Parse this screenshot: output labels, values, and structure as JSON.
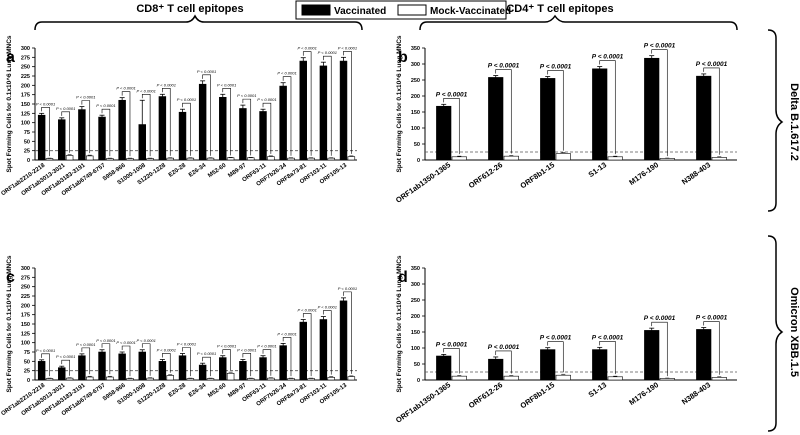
{
  "header": {
    "left_title": "CD8⁺ T cell epitopes",
    "right_title": "CD4⁺ T cell epitopes",
    "legend": [
      {
        "label": "Vaccinated",
        "fill": "#000000"
      },
      {
        "label": "Mock-Vaccinated",
        "fill": "#ffffff"
      }
    ]
  },
  "variants": [
    "Delta B.1.617.2",
    "Omicron XBB.1.5"
  ],
  "colors": {
    "vaccinated": "#000000",
    "mock": "#ffffff",
    "threshold": "#555555"
  },
  "chart_data": [
    {
      "id": "a",
      "type": "bar",
      "panel_label": "a",
      "ylabel": "Spot Forming Cells for 0.1x10^6 Lung MNCs",
      "ylim": [
        0,
        300
      ],
      "yticks": [
        0,
        25,
        50,
        75,
        100,
        125,
        150,
        175,
        200,
        225,
        250,
        275,
        300
      ],
      "threshold": 25,
      "categories": [
        "ORF1ab2210-2218",
        "ORF1ab3013-3021",
        "ORF1ab3183-3191",
        "ORF1ab6749-6757",
        "S958-966",
        "S1000-1008",
        "S1220-1228",
        "E20-28",
        "E26-34",
        "M52-60",
        "M89-97",
        "ORF63-11",
        "ORF7b26-34",
        "ORF8a73-81",
        "ORF103-11",
        "ORF105-13"
      ],
      "series": [
        {
          "name": "Vaccinated",
          "values": [
            120,
            108,
            135,
            115,
            160,
            95,
            170,
            128,
            203,
            168,
            138,
            130,
            198,
            265,
            252,
            265
          ],
          "errors": [
            5,
            5,
            8,
            5,
            7,
            65,
            6,
            8,
            9,
            8,
            9,
            6,
            9,
            9,
            10,
            10
          ]
        },
        {
          "name": "Mock-Vaccinated",
          "values": [
            4,
            12,
            11,
            4,
            4,
            4,
            5,
            5,
            5,
            6,
            6,
            9,
            5,
            5,
            5,
            9
          ],
          "errors": [
            1,
            2,
            2,
            1,
            1,
            1,
            1,
            1,
            1,
            1,
            1,
            2,
            1,
            1,
            1,
            2
          ]
        }
      ],
      "annotation": "P < 0.0001"
    },
    {
      "id": "b",
      "type": "bar",
      "panel_label": "b",
      "ylabel": "Spot Forming Cells for 0.1x10^6 Lung MNCs",
      "ylim": [
        0,
        350
      ],
      "yticks": [
        0,
        50,
        100,
        150,
        200,
        250,
        300,
        350
      ],
      "threshold": 25,
      "categories": [
        "ORF1ab1350-1365",
        "ORF612-26",
        "ORF8b1-15",
        "S1-13",
        "M176-190",
        "N388-403"
      ],
      "series": [
        {
          "name": "Vaccinated",
          "values": [
            168,
            258,
            255,
            285,
            318,
            262
          ],
          "errors": [
            6,
            6,
            6,
            7,
            8,
            7
          ]
        },
        {
          "name": "Mock-Vaccinated",
          "values": [
            10,
            12,
            20,
            10,
            5,
            8
          ],
          "errors": [
            2,
            2,
            3,
            2,
            1,
            2
          ]
        }
      ],
      "annotation": "P < 0.0001"
    },
    {
      "id": "c",
      "type": "bar",
      "panel_label": "c",
      "ylabel": "Spot Forming Cells for 0.1x10^6 Lung MNCs",
      "ylim": [
        0,
        300
      ],
      "yticks": [
        0,
        25,
        50,
        75,
        100,
        125,
        150,
        175,
        200,
        225,
        250,
        275,
        300
      ],
      "threshold": 25,
      "categories": [
        "ORF1ab2210-2218",
        "ORF1ab3013-3021",
        "ORF1ab3183-3191",
        "ORF1ab6749-6757",
        "S958-966",
        "S1000-1008",
        "S1220-1228",
        "E20-28",
        "E26-34",
        "M52-60",
        "M89-97",
        "ORF63-11",
        "ORF7b26-34",
        "ORF8a73-81",
        "ORF103-11",
        "ORF105-13"
      ],
      "series": [
        {
          "name": "Vaccinated",
          "values": [
            50,
            33,
            65,
            75,
            70,
            75,
            50,
            65,
            40,
            60,
            50,
            60,
            92,
            155,
            162,
            212
          ],
          "errors": [
            4,
            4,
            5,
            6,
            5,
            6,
            5,
            6,
            5,
            5,
            5,
            5,
            6,
            7,
            8,
            8
          ]
        },
        {
          "name": "Mock-Vaccinated",
          "values": [
            4,
            5,
            8,
            8,
            4,
            5,
            12,
            4,
            4,
            18,
            4,
            5,
            4,
            4,
            7,
            9
          ],
          "errors": [
            1,
            1,
            2,
            2,
            1,
            1,
            2,
            1,
            1,
            3,
            1,
            1,
            1,
            1,
            2,
            2
          ]
        }
      ],
      "annotation": "P < 0.0001"
    },
    {
      "id": "d",
      "type": "bar",
      "panel_label": "d",
      "ylabel": "Spot Forming Cells for 0.1x10^6 Lung MNCs",
      "ylim": [
        0,
        350
      ],
      "yticks": [
        0,
        50,
        100,
        150,
        200,
        250,
        300,
        350
      ],
      "threshold": 25,
      "categories": [
        "ORF1ab1350-1365",
        "ORF612-26",
        "ORF8b1-15",
        "S1-13",
        "M176-190",
        "N388-403"
      ],
      "series": [
        {
          "name": "Vaccinated",
          "values": [
            75,
            65,
            95,
            95,
            155,
            158
          ],
          "errors": [
            5,
            7,
            6,
            7,
            7,
            6
          ]
        },
        {
          "name": "Mock-Vaccinated",
          "values": [
            12,
            12,
            15,
            10,
            5,
            8
          ],
          "errors": [
            2,
            2,
            3,
            2,
            1,
            2
          ]
        }
      ],
      "annotation": "P < 0.0001"
    }
  ]
}
